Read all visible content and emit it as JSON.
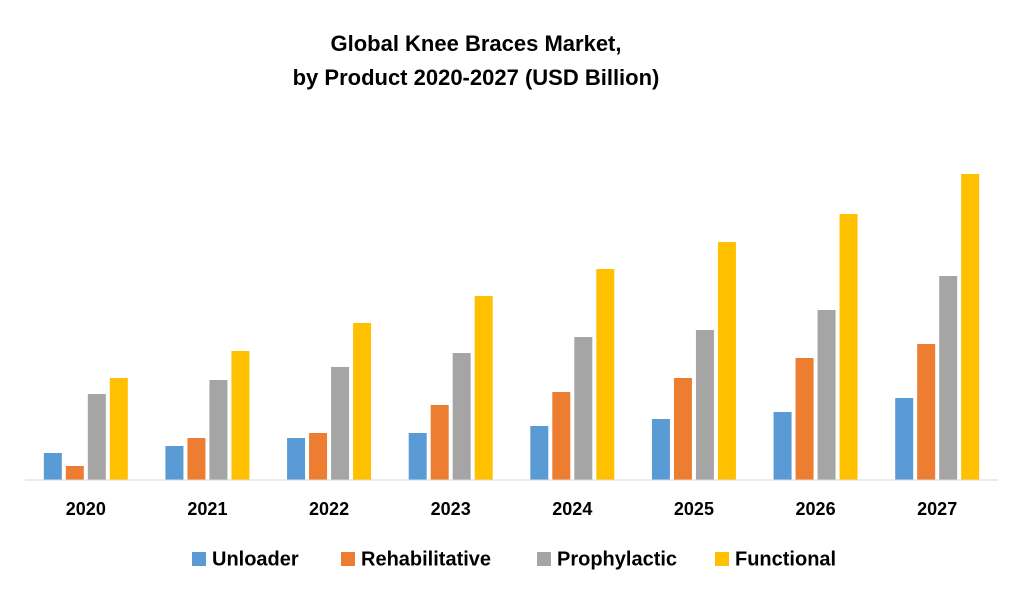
{
  "chart_data": {
    "type": "bar",
    "title": "Global Knee Braces Market,",
    "subtitle": "by Product 2020-2027 (USD Billion)",
    "categories": [
      "2020",
      "2021",
      "2022",
      "2023",
      "2024",
      "2025",
      "2026",
      "2027"
    ],
    "series": [
      {
        "name": "Unloader",
        "color": "#5b9bd5",
        "values": [
          0.27,
          0.34,
          0.42,
          0.47,
          0.54,
          0.61,
          0.68,
          0.82
        ]
      },
      {
        "name": "Rehabilitative",
        "color": "#ed7d31",
        "values": [
          0.14,
          0.42,
          0.47,
          0.75,
          0.88,
          1.02,
          1.22,
          1.36
        ]
      },
      {
        "name": "Prophylactic",
        "color": "#a5a5a5",
        "values": [
          0.86,
          1.0,
          1.13,
          1.27,
          1.43,
          1.5,
          1.7,
          2.04
        ]
      },
      {
        "name": "Functional",
        "color": "#ffc000",
        "values": [
          1.02,
          1.29,
          1.57,
          1.84,
          2.11,
          2.38,
          2.66,
          3.06
        ]
      }
    ],
    "ylim": [
      0,
      3.4
    ],
    "grid": false,
    "legend": "bottom"
  }
}
